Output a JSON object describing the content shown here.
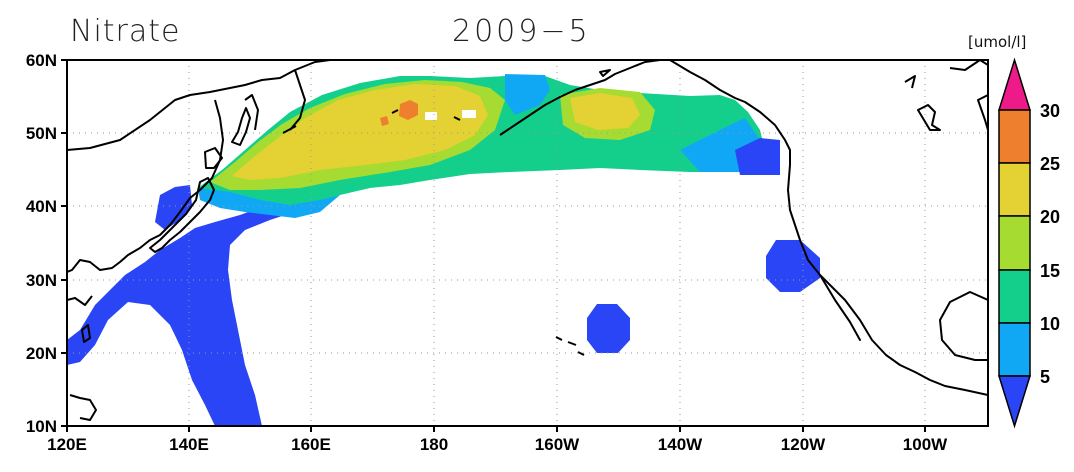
{
  "title": {
    "variable": "Nitrate",
    "date": "2009−5"
  },
  "units": "[umol/l]",
  "axes": {
    "lon_ticks": [
      "120E",
      "140E",
      "160E",
      "180",
      "160W",
      "140W",
      "120W",
      "100W"
    ],
    "lat_ticks": [
      "60N",
      "50N",
      "40N",
      "30N",
      "20N",
      "10N"
    ]
  },
  "colorbar": {
    "levels": [
      "5",
      "10",
      "15",
      "20",
      "25",
      "30"
    ],
    "colors": [
      "#2a45f5",
      "#10a8f5",
      "#14cf8c",
      "#a6dc32",
      "#e4d133",
      "#ee7f2e",
      "#ee1a8a"
    ]
  },
  "chart_data": {
    "type": "heatmap",
    "variable": "Nitrate",
    "date": "2009-5",
    "units": "umol/l",
    "lon_range": [
      120,
      270
    ],
    "lat_range": [
      10,
      60
    ],
    "contour_levels": [
      5,
      10,
      15,
      20,
      25,
      30
    ],
    "grid": true
  }
}
